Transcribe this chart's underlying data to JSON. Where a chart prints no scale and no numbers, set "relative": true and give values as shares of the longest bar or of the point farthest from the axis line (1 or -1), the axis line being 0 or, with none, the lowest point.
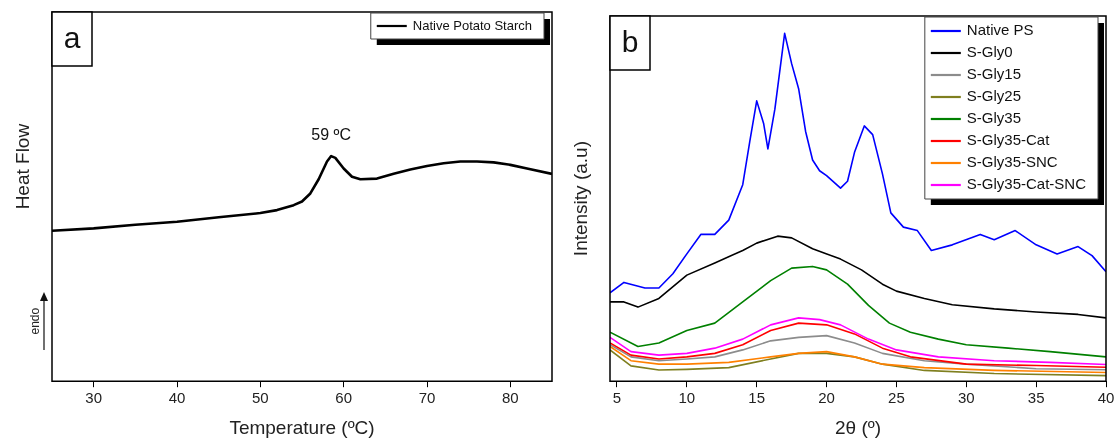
{
  "chart_data": [
    {
      "type": "line",
      "xlabel": "Temperature (ºC)",
      "ylabel": "Heat Flow",
      "relative": true,
      "legend": "top right",
      "xlim": [
        25,
        85
      ],
      "xticks": [
        30,
        40,
        50,
        60,
        70,
        80
      ],
      "annotations": [
        "a",
        {
          "text": "59 ºC",
          "x": 58.5,
          "y": 1
        },
        "endo"
      ],
      "series": [
        {
          "name": "Native Potato Starch",
          "color": "#000000",
          "x": [
            25,
            30,
            35,
            40,
            45,
            50,
            52,
            54,
            55,
            56,
            57,
            58,
            58.5,
            59,
            60,
            61,
            62,
            64,
            66,
            68,
            70,
            72,
            74,
            76,
            78,
            80,
            82,
            85
          ],
          "values": [
            0.668,
            0.679,
            0.695,
            0.708,
            0.728,
            0.747,
            0.76,
            0.782,
            0.798,
            0.834,
            0.897,
            0.976,
            1,
            0.992,
            0.945,
            0.908,
            0.897,
            0.9,
            0.921,
            0.94,
            0.956,
            0.968,
            0.976,
            0.976,
            0.972,
            0.961,
            0.945,
            0.921
          ]
        }
      ]
    },
    {
      "type": "line",
      "xlabel": "2θ (º)",
      "ylabel": "Intensity (a.u)",
      "relative": true,
      "legend": "top right",
      "xlim": [
        4.5,
        40
      ],
      "xticks": [
        5,
        10,
        15,
        20,
        25,
        30,
        35,
        40
      ],
      "annotations": [
        "b"
      ],
      "series": [
        {
          "name": "Native PS",
          "color": "#0000ff",
          "x": [
            4.5,
            5.5,
            7,
            8,
            9,
            10,
            11,
            12,
            13,
            14,
            14.5,
            15,
            15.5,
            15.8,
            16.3,
            17,
            17.5,
            18,
            18.5,
            19,
            19.5,
            20,
            21,
            21.5,
            22,
            22.7,
            23.3,
            24,
            24.6,
            25.5,
            26.5,
            27.5,
            29,
            31,
            32,
            33.5,
            35,
            36.5,
            38,
            39,
            40
          ],
          "values": [
            0.254,
            0.284,
            0.268,
            0.268,
            0.309,
            0.366,
            0.422,
            0.422,
            0.463,
            0.565,
            0.688,
            0.806,
            0.74,
            0.668,
            0.782,
            1,
            0.913,
            0.841,
            0.718,
            0.636,
            0.605,
            0.591,
            0.555,
            0.575,
            0.658,
            0.734,
            0.709,
            0.596,
            0.484,
            0.443,
            0.433,
            0.376,
            0.392,
            0.422,
            0.407,
            0.433,
            0.392,
            0.366,
            0.387,
            0.361,
            0.315
          ]
        },
        {
          "name": "S-Gly0",
          "color": "#000000",
          "x": [
            4.5,
            5.5,
            6.5,
            8,
            10,
            12,
            14,
            15,
            16.5,
            17.5,
            19,
            21,
            22.5,
            24,
            25,
            27,
            29,
            32,
            35,
            38,
            40
          ],
          "values": [
            0.228,
            0.228,
            0.213,
            0.238,
            0.305,
            0.34,
            0.376,
            0.397,
            0.417,
            0.412,
            0.381,
            0.351,
            0.32,
            0.279,
            0.259,
            0.238,
            0.22,
            0.208,
            0.199,
            0.192,
            0.182
          ]
        },
        {
          "name": "S-Gly15",
          "color": "#8c8c8c",
          "x": [
            4.5,
            6,
            8,
            10,
            12,
            14,
            16,
            18,
            20,
            22,
            24,
            27,
            30,
            35,
            40
          ],
          "values": [
            0.105,
            0.07,
            0.059,
            0.064,
            0.07,
            0.09,
            0.116,
            0.126,
            0.131,
            0.11,
            0.08,
            0.059,
            0.049,
            0.036,
            0.033
          ]
        },
        {
          "name": "S-Gly25",
          "color": "#7f7f1f",
          "x": [
            4.5,
            6,
            8,
            10,
            13,
            16,
            18,
            20,
            22,
            24,
            27,
            32,
            40
          ],
          "values": [
            0.09,
            0.044,
            0.032,
            0.034,
            0.039,
            0.064,
            0.08,
            0.08,
            0.07,
            0.049,
            0.031,
            0.022,
            0.016
          ]
        },
        {
          "name": "S-Gly35",
          "color": "#008000",
          "x": [
            4.5,
            6.5,
            8,
            10,
            12,
            14,
            16,
            17.5,
            19,
            20,
            21.5,
            23,
            24.5,
            26,
            28,
            30,
            33,
            36,
            40
          ],
          "values": [
            0.141,
            0.1,
            0.11,
            0.146,
            0.167,
            0.228,
            0.289,
            0.325,
            0.33,
            0.32,
            0.279,
            0.218,
            0.167,
            0.141,
            0.121,
            0.105,
            0.095,
            0.085,
            0.07
          ]
        },
        {
          "name": "S-Gly35-Cat",
          "color": "#ff0000",
          "x": [
            4.5,
            6,
            8,
            10,
            12,
            14,
            16,
            18,
            20,
            22,
            24,
            26,
            30,
            35,
            40
          ],
          "values": [
            0.11,
            0.075,
            0.064,
            0.07,
            0.08,
            0.105,
            0.146,
            0.167,
            0.162,
            0.136,
            0.095,
            0.07,
            0.049,
            0.045,
            0.04
          ]
        },
        {
          "name": "S-Gly35-SNC",
          "color": "#ff8000",
          "x": [
            4.5,
            6,
            8,
            10,
            13,
            16,
            18,
            20,
            22,
            24,
            27,
            32,
            40
          ],
          "values": [
            0.1,
            0.059,
            0.049,
            0.049,
            0.054,
            0.07,
            0.08,
            0.085,
            0.07,
            0.049,
            0.039,
            0.031,
            0.025
          ]
        },
        {
          "name": "S-Gly35-Cat-SNC",
          "color": "#ff00ff",
          "x": [
            4.5,
            6,
            8,
            10,
            12,
            14,
            16,
            18,
            19.5,
            21,
            23,
            25,
            28,
            32,
            36,
            40
          ],
          "values": [
            0.126,
            0.085,
            0.075,
            0.08,
            0.095,
            0.121,
            0.162,
            0.182,
            0.177,
            0.162,
            0.121,
            0.09,
            0.07,
            0.059,
            0.054,
            0.048
          ]
        }
      ]
    }
  ]
}
